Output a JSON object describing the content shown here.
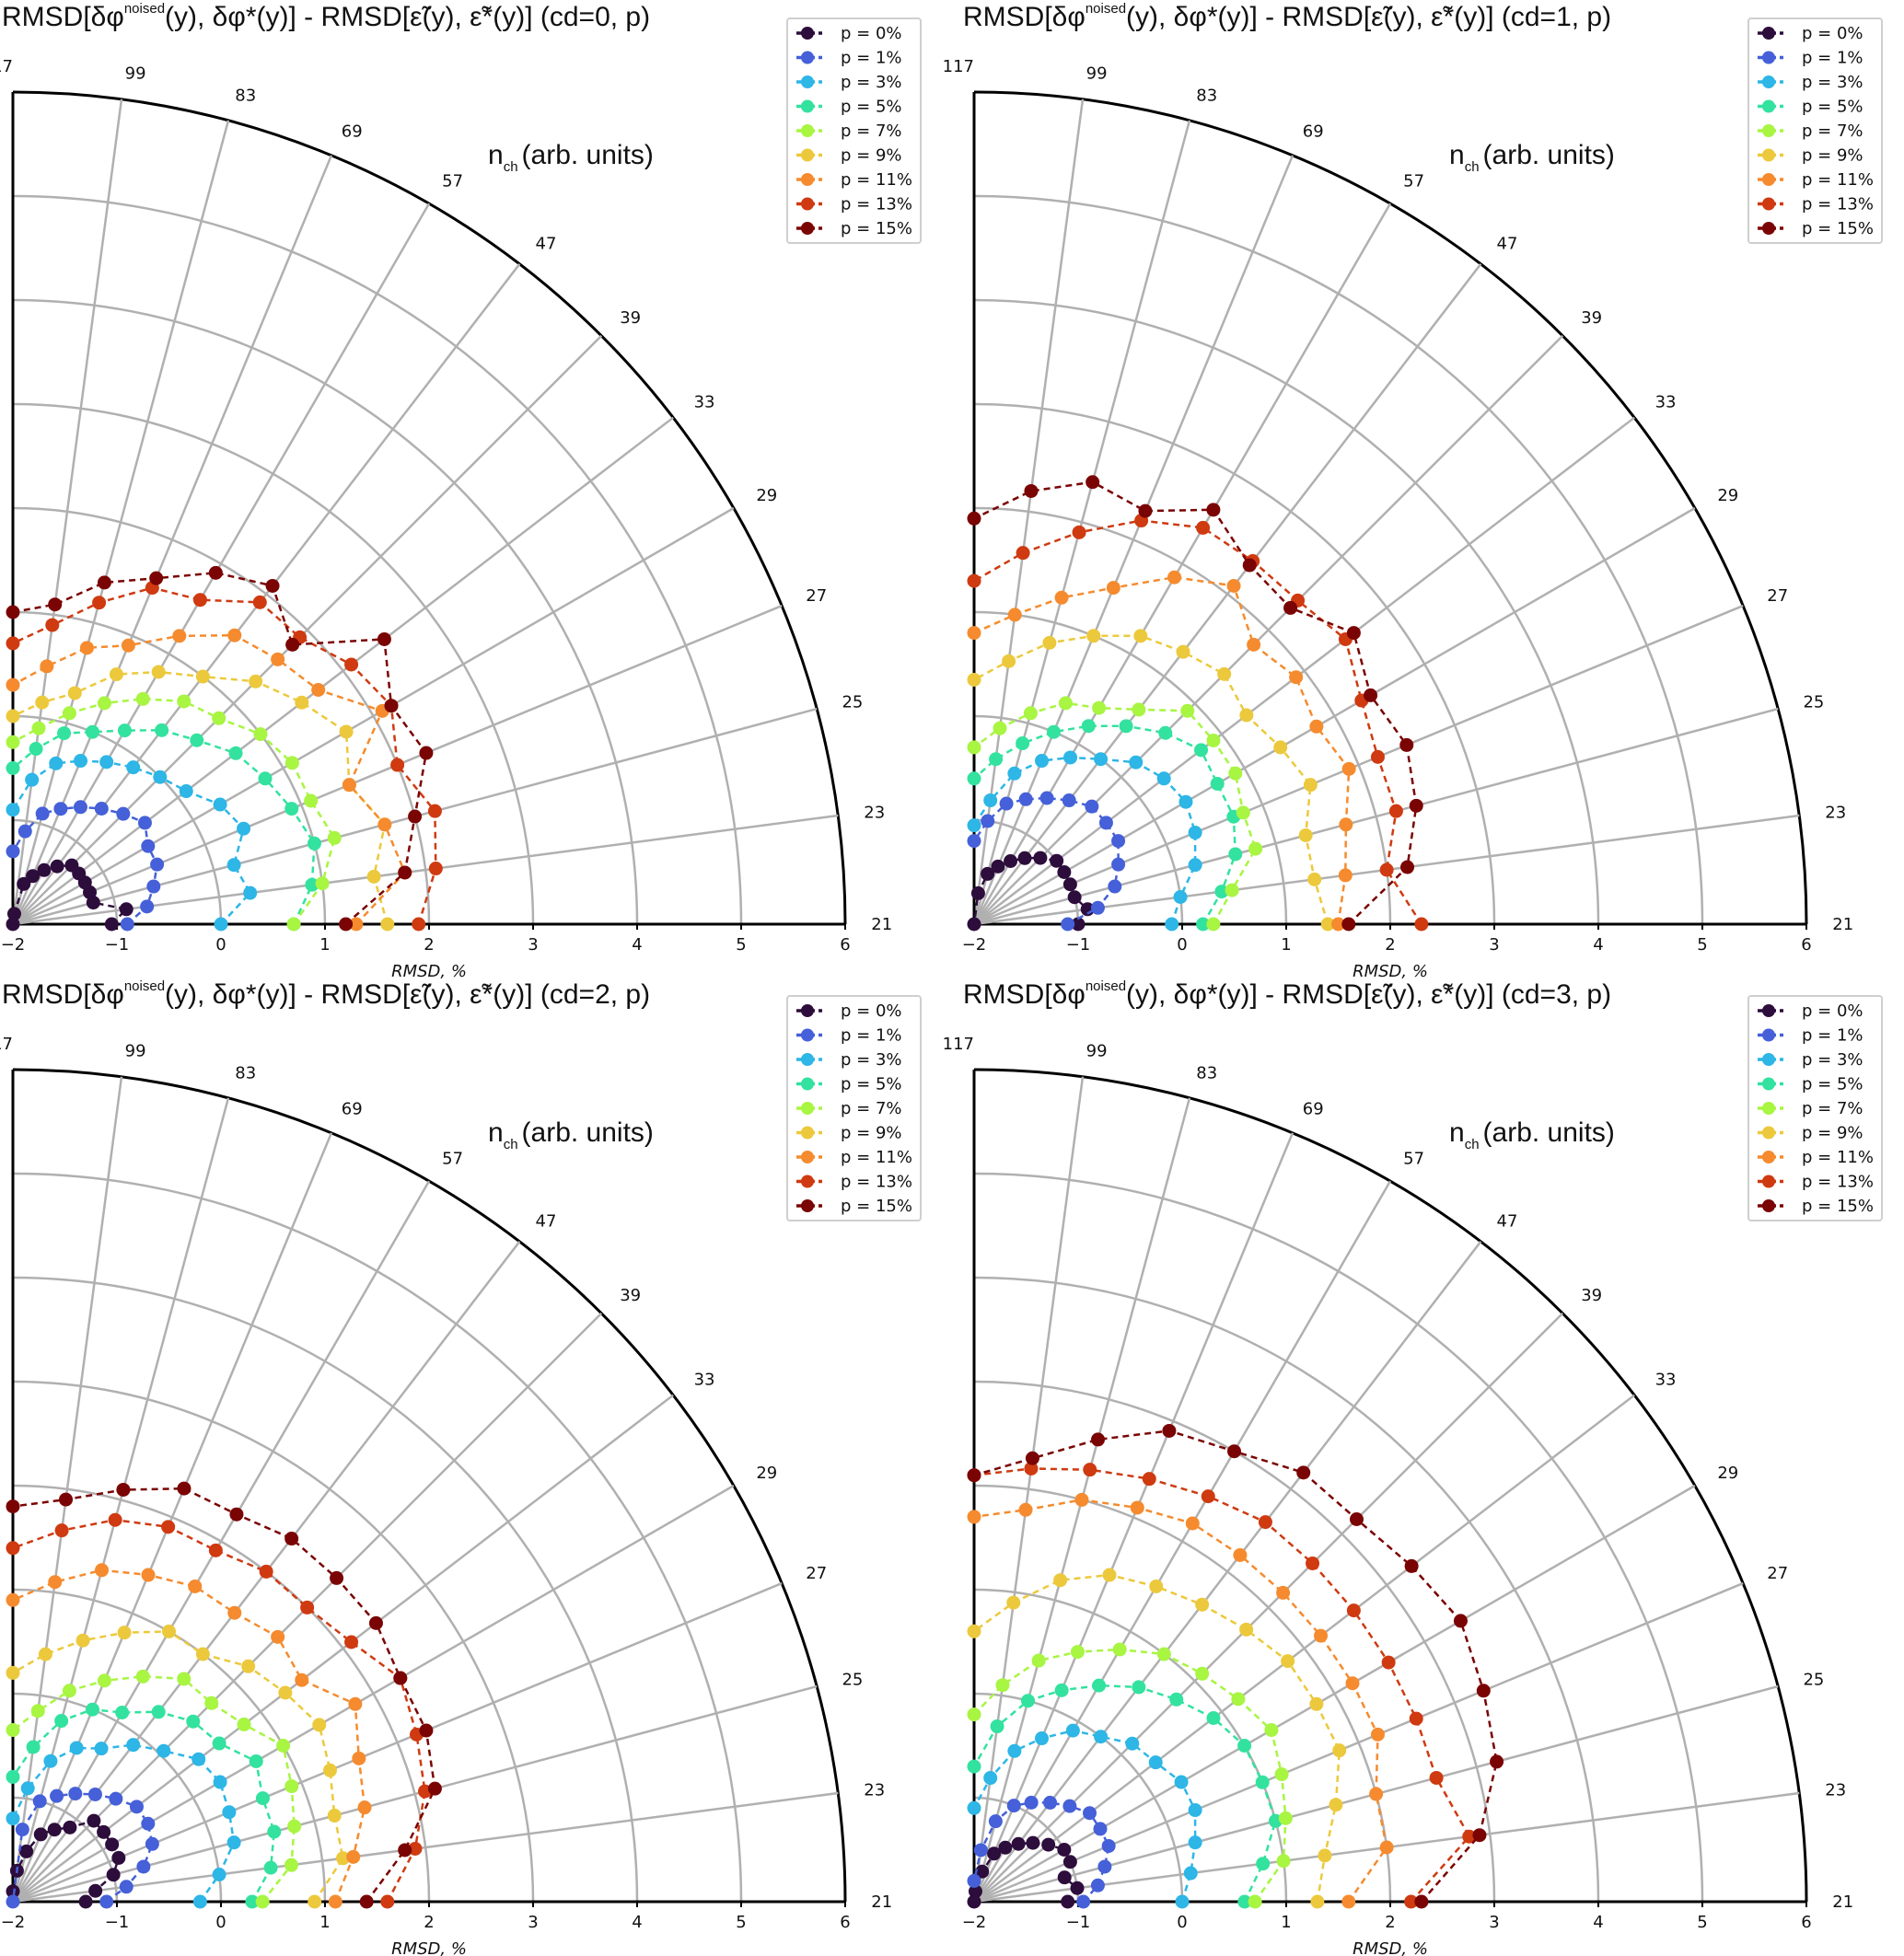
{
  "figure": {
    "title_prefix": "RMSD[δφ",
    "title_sup": "noised",
    "title_suffix": "(y), δφ*(y)] - RMSD[ε̃(y), ε̃*(y)] (cd={cd}, p)",
    "angular_label_main": "n",
    "angular_label_sub": "ch",
    "angular_label_rest": "(arb. units)",
    "xlabel": "RMSD, %"
  },
  "chart_data": {
    "type": "scatter",
    "subtype": "polar-quadrant",
    "radial_ticks": [
      -2,
      -1,
      0,
      1,
      2,
      3,
      4,
      5,
      6
    ],
    "radial_range": [
      -2,
      6
    ],
    "angular_ticks": [
      "21",
      "23",
      "25",
      "27",
      "29",
      "33",
      "39",
      "47",
      "57",
      "69",
      "83",
      "99",
      "117"
    ],
    "legend": [
      {
        "label": "p = 0%",
        "color": "#2d0d3c"
      },
      {
        "label": "p = 1%",
        "color": "#4560d8"
      },
      {
        "label": "p = 3%",
        "color": "#2db6e6"
      },
      {
        "label": "p = 5%",
        "color": "#33e29f"
      },
      {
        "label": "p = 7%",
        "color": "#a8f542"
      },
      {
        "label": "p = 9%",
        "color": "#ecc93c"
      },
      {
        "label": "p = 11%",
        "color": "#f58b2e"
      },
      {
        "label": "p = 13%",
        "color": "#cf3a11"
      },
      {
        "label": "p = 15%",
        "color": "#7a0403"
      }
    ],
    "panels": [
      {
        "cd": "0",
        "series": [
          [
            -1.05,
            -0.9,
            -1.2,
            -1.2,
            -1.2,
            -1.2,
            -1.2,
            -1.3,
            -1.4,
            -1.5,
            -1.6,
            -1.9,
            -2
          ],
          [
            -0.9,
            -0.7,
            -0.6,
            -0.5,
            -0.5,
            -0.4,
            -0.5,
            -0.6,
            -0.7,
            -0.8,
            -0.9,
            -1.1,
            -1.3
          ],
          [
            0,
            0.3,
            0.2,
            0.4,
            0.3,
            0.1,
            0,
            -0.1,
            -0.2,
            -0.3,
            -0.4,
            -0.6,
            -0.9
          ],
          [
            0.7,
            0.9,
            1.0,
            0.9,
            0.8,
            0.7,
            0.5,
            0.35,
            0.15,
            0,
            -0.1,
            -0.3,
            -0.5
          ],
          [
            0.7,
            1.0,
            1.2,
            1.1,
            1.1,
            1.0,
            0.8,
            0.7,
            0.5,
            0.3,
            0.1,
            -0.1,
            -0.25
          ],
          [
            1.6,
            1.5,
            1.7,
            1.5,
            1.7,
            1.5,
            1.3,
            1.0,
            0.8,
            0.6,
            0.3,
            0.15,
            0
          ],
          [
            1.3,
            1.8,
            1.7,
            1.5,
            2.1,
            1.7,
            1.6,
            1.5,
            1.2,
            0.9,
            0.75,
            0.5,
            0.3
          ],
          [
            1.9,
            2.1,
            2.2,
            2.0,
            2.2,
            2.1,
            1.9,
            1.9,
            1.6,
            1.5,
            1.2,
            0.9,
            0.7
          ],
          [
            1.2,
            1.8,
            2.0,
            2.3,
            2.2,
            2.5,
            1.8,
            2.1,
            1.9,
            1.6,
            1.4,
            1.1,
            1.0
          ]
        ]
      },
      {
        "cd": "1",
        "series": [
          [
            -1.0,
            -0.9,
            -1.0,
            -1.0,
            -1.0,
            -1.0,
            -1.1,
            -1.2,
            -1.3,
            -1.4,
            -1.5,
            -1.7,
            -2
          ],
          [
            -1.1,
            -0.8,
            -0.6,
            -0.5,
            -0.4,
            -0.4,
            -0.4,
            -0.5,
            -0.6,
            -0.7,
            -0.8,
            -1.0,
            -1.2
          ],
          [
            -0.1,
            0,
            0.2,
            0.3,
            0.35,
            0.3,
            0.2,
            0,
            -0.15,
            -0.3,
            -0.5,
            -0.8,
            -1.05
          ],
          [
            0.2,
            0.4,
            0.6,
            0.7,
            0.7,
            0.75,
            0.6,
            0.4,
            0.2,
            0,
            -0.2,
            -0.4,
            -0.6
          ],
          [
            0.3,
            0.5,
            0.8,
            0.8,
            0.9,
            0.9,
            0.9,
            0.6,
            0.4,
            0.3,
            0.1,
            -0.1,
            -0.3
          ],
          [
            1.4,
            1.3,
            1.3,
            1.5,
            1.4,
            1.3,
            1.4,
            1.3,
            1.2,
            1.0,
            0.8,
            0.55,
            0.35
          ],
          [
            1.5,
            1.6,
            1.7,
            1.9,
            1.8,
            1.9,
            1.8,
            2.1,
            1.85,
            1.5,
            1.25,
            1.0,
            0.8
          ],
          [
            2.3,
            2.0,
            2.2,
            2.2,
            2.3,
            2.5,
            2.4,
            2.4,
            2.4,
            2.2,
            1.9,
            1.6,
            1.3
          ],
          [
            1.6,
            2.2,
            2.4,
            2.5,
            2.4,
            2.6,
            2.3,
            2.35,
            2.6,
            2.3,
            2.4,
            2.2,
            1.9
          ]
        ]
      },
      {
        "cd": "2",
        "series": [
          [
            -1.3,
            -1.2,
            -1.0,
            -0.9,
            -0.9,
            -0.9,
            -0.9,
            -1.1,
            -1.2,
            -1.3,
            -1.5,
            -1.7,
            -1.9
          ],
          [
            -1.1,
            -0.9,
            -0.7,
            -0.55,
            -0.5,
            -0.5,
            -0.6,
            -0.7,
            -0.8,
            -0.9,
            -1.0,
            -1.3,
            -2
          ],
          [
            -0.2,
            0,
            0.2,
            0.25,
            0.3,
            0.25,
            0.05,
            -0.1,
            -0.3,
            -0.4,
            -0.6,
            -0.9,
            -1.2
          ],
          [
            0.3,
            0.5,
            0.6,
            0.6,
            0.7,
            0.5,
            0.45,
            0.3,
            0.1,
            0,
            -0.2,
            -0.5,
            -0.8
          ],
          [
            0.4,
            0.7,
            0.8,
            0.9,
            1.0,
            0.8,
            0.7,
            0.7,
            0.5,
            0.3,
            0.1,
            -0.15,
            -0.35
          ],
          [
            0.9,
            1.2,
            1.2,
            1.3,
            1.4,
            1.3,
            1.2,
            1.0,
            1.0,
            0.8,
            0.6,
            0.4,
            0.2
          ],
          [
            1.1,
            1.3,
            1.5,
            1.6,
            1.8,
            1.5,
            1.6,
            1.5,
            1.5,
            1.4,
            1.3,
            1.1,
            0.9
          ],
          [
            1.6,
            1.9,
            2.1,
            2.2,
            2.3,
            2.1,
            2.0,
            2.0,
            1.9,
            1.9,
            1.8,
            1.6,
            1.4
          ],
          [
            1.4,
            1.8,
            2.2,
            2.3,
            2.3,
            2.4,
            2.4,
            2.4,
            2.3,
            2.3,
            2.1,
            1.9,
            1.8
          ]
        ]
      },
      {
        "cd": "3",
        "series": [
          [
            -1.1,
            -1.0,
            -1.1,
            -1.0,
            -1.0,
            -1.1,
            -1.2,
            -1.3,
            -1.4,
            -1.5,
            -1.7,
            -1.9,
            -2
          ],
          [
            -0.95,
            -0.8,
            -0.7,
            -0.6,
            -0.6,
            -0.6,
            -0.7,
            -0.8,
            -0.9,
            -1.0,
            -1.2,
            -1.5,
            -1.8
          ],
          [
            0,
            0.1,
            0.2,
            0.3,
            0.3,
            0.2,
            0.15,
            0,
            -0.1,
            -0.3,
            -0.5,
            -0.8,
            -1.1
          ],
          [
            0.6,
            0.8,
            1.0,
            1.0,
            1.0,
            0.9,
            0.75,
            0.6,
            0.4,
            0.2,
            0,
            -0.3,
            -0.7
          ],
          [
            0.7,
            1.0,
            1.1,
            1.2,
            1.3,
            1.2,
            1.1,
            1.0,
            0.8,
            0.6,
            0.4,
            0.1,
            -0.2
          ],
          [
            1.3,
            1.4,
            1.6,
            1.8,
            1.8,
            1.8,
            1.7,
            1.6,
            1.5,
            1.4,
            1.2,
            0.9,
            0.6
          ],
          [
            1.6,
            2.0,
            2.0,
            2.2,
            2.2,
            2.2,
            2.2,
            2.2,
            2.2,
            2.1,
            2.0,
            1.8,
            1.7
          ],
          [
            2.2,
            2.8,
            2.6,
            2.6,
            2.6,
            2.6,
            2.6,
            2.6,
            2.5,
            2.4,
            2.3,
            2.2,
            2.1
          ],
          [
            2.3,
            2.9,
            3.2,
            3.3,
            3.4,
            3.3,
            3.2,
            3.2,
            3.0,
            2.9,
            2.6,
            2.3,
            2.1
          ]
        ]
      }
    ]
  }
}
